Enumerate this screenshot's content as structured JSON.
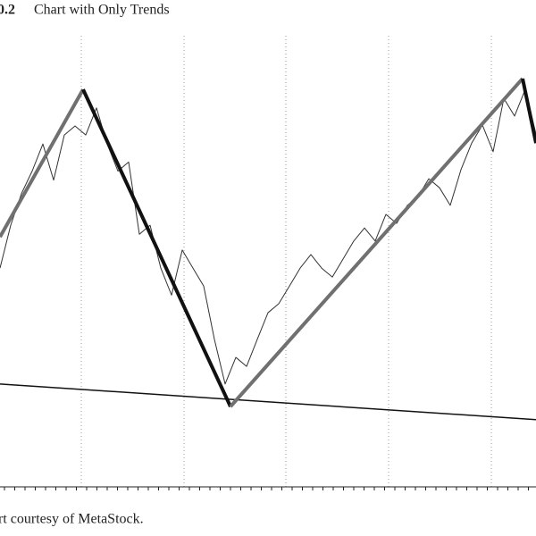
{
  "figure_number": "0.2",
  "title": "Chart with Only Trends",
  "footer": "rt courtesy of MetaStock.",
  "chart_data": {
    "type": "line",
    "xlim": [
      0,
      100
    ],
    "ylim": [
      0,
      100
    ],
    "color": "#333333",
    "x": [
      0,
      2,
      4,
      6,
      8,
      10,
      12,
      14,
      16,
      18,
      20,
      22,
      24,
      26,
      28,
      30,
      32,
      34,
      36,
      38,
      40,
      42,
      44,
      46,
      48,
      50,
      52,
      54,
      56,
      58,
      60,
      62,
      64,
      66,
      68,
      70,
      72,
      74,
      76,
      78,
      80,
      82,
      84,
      86,
      88,
      90,
      92,
      94,
      96,
      98,
      100
    ],
    "values": [
      48.5,
      58,
      65,
      70,
      76,
      68,
      78,
      80,
      78,
      84,
      76,
      70,
      72,
      56,
      58,
      48.5,
      42.5,
      52.5,
      48.5,
      44.5,
      32.7,
      22.8,
      28.7,
      26.7,
      32.7,
      38.6,
      40.6,
      44.5,
      48.5,
      51.5,
      48.5,
      46.5,
      50.5,
      54.5,
      57.4,
      54.5,
      60.4,
      58.4,
      62.4,
      64.4,
      68.3,
      66.3,
      62.4,
      70.3,
      76.2,
      80.2,
      74.3,
      86.1,
      82.2,
      88.1,
      78.2
    ],
    "trends": [
      {
        "x": [
          0,
          15.5
        ],
        "values": [
          55.4,
          88.1
        ],
        "color": "#707070"
      },
      {
        "x": [
          15.5,
          43
        ],
        "values": [
          88.1,
          17.8
        ],
        "color": "#111111"
      },
      {
        "x": [
          43,
          97.5
        ],
        "values": [
          17.8,
          90.5
        ],
        "color": "#707070"
      },
      {
        "x": [
          97.5,
          100
        ],
        "values": [
          90.5,
          76.2
        ],
        "color": "#111111"
      }
    ],
    "support": {
      "x": [
        0,
        100
      ],
      "values": [
        22.8,
        14.9
      ],
      "color": "#111111"
    }
  }
}
